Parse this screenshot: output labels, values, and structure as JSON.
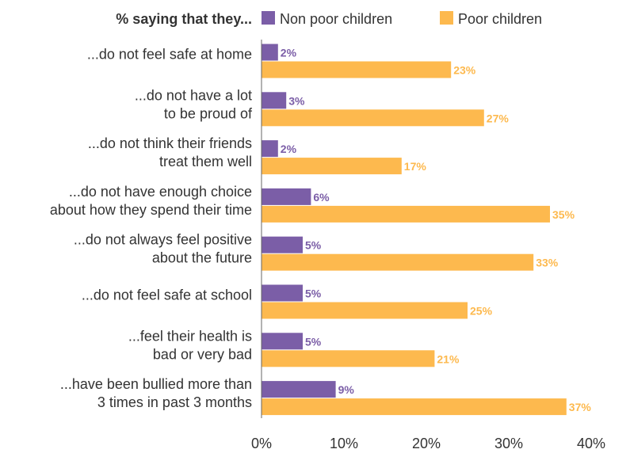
{
  "chart_data": {
    "type": "bar",
    "orientation": "horizontal",
    "title": "% saying that they...",
    "categories": [
      [
        "...do not feel safe at home"
      ],
      [
        "...do not have a lot",
        "to be proud of"
      ],
      [
        "...do not think their friends",
        "treat them well"
      ],
      [
        "...do not have enough choice",
        "about how they spend their time"
      ],
      [
        "...do not always feel positive",
        "about the future"
      ],
      [
        "...do not feel safe at school"
      ],
      [
        "...feel their health is",
        "bad or very bad"
      ],
      [
        "...have been bullied more than",
        "3 times in past 3 months"
      ]
    ],
    "series": [
      {
        "name": "Non poor children",
        "color": "#7B5EA7",
        "values": [
          2,
          3,
          2,
          6,
          5,
          5,
          5,
          9
        ],
        "labels": [
          "2%",
          "3%",
          "2%",
          "6%",
          "5%",
          "5%",
          "5%",
          "9%"
        ]
      },
      {
        "name": "Poor children",
        "color": "#FDB94E",
        "values": [
          23,
          27,
          17,
          35,
          33,
          25,
          21,
          37
        ],
        "labels": [
          "23%",
          "27%",
          "17%",
          "35%",
          "33%",
          "25%",
          "21%",
          "37%"
        ]
      }
    ],
    "xlim": [
      0,
      40
    ],
    "xticks": [
      0,
      10,
      20,
      30,
      40
    ],
    "xtick_labels": [
      "0%",
      "10%",
      "20%",
      "30%",
      "40%"
    ],
    "legend": "top",
    "grid": false
  }
}
